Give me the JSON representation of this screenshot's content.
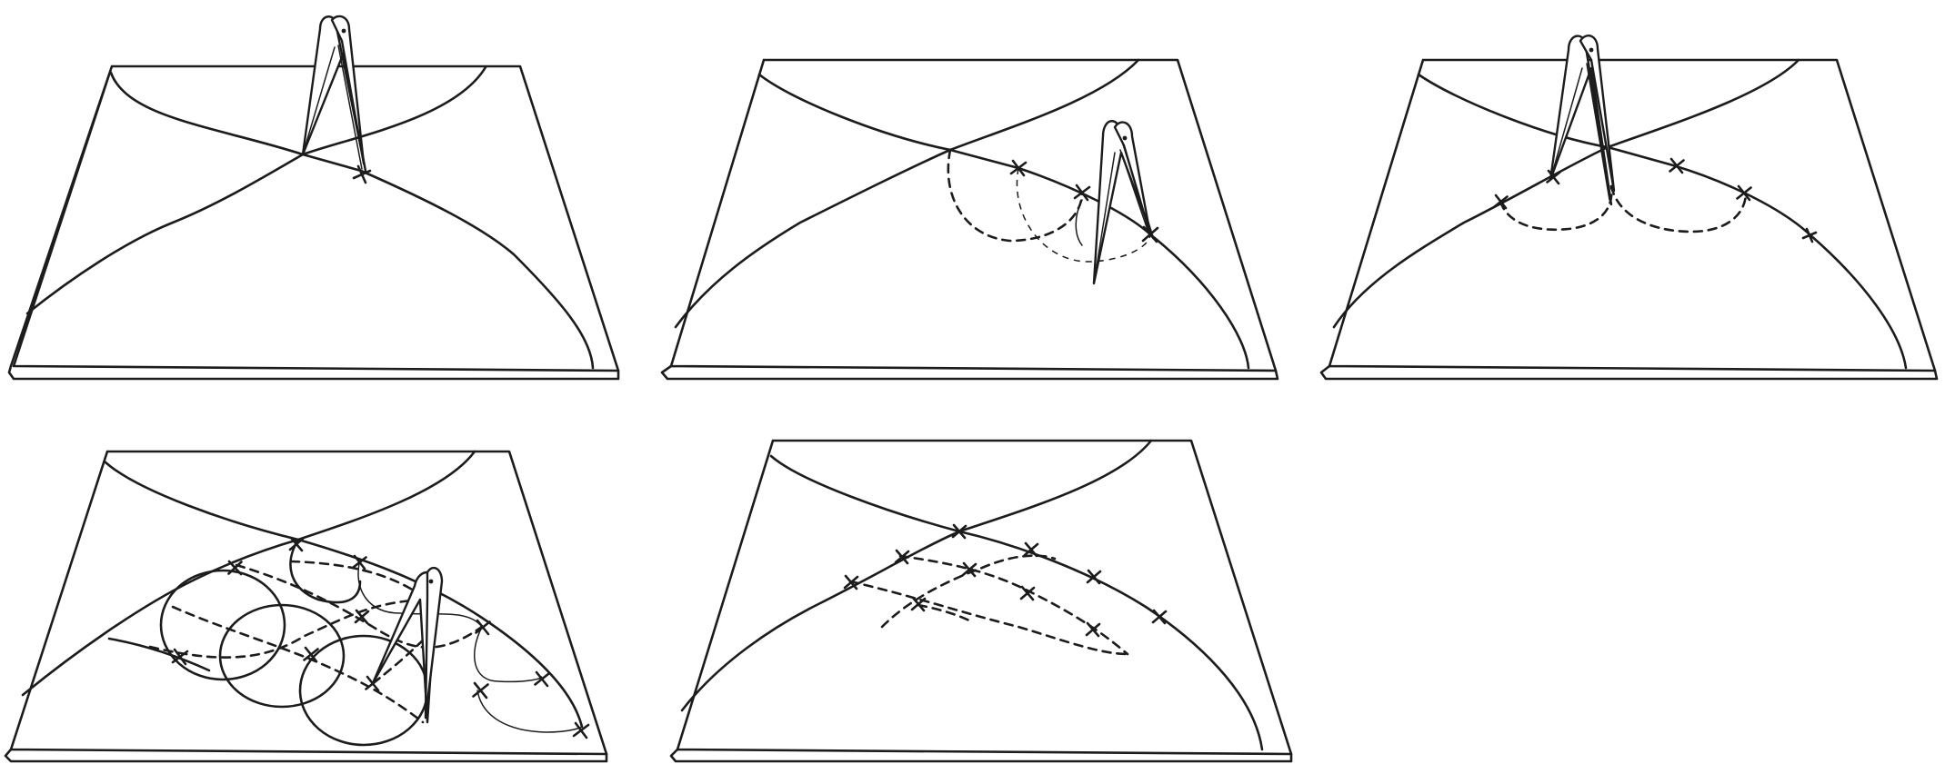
{
  "figure": {
    "panel_count": 5,
    "panels": [
      {
        "id": 1,
        "row": 1,
        "col": 1,
        "shows_compass": true,
        "dashed_arcs": false
      },
      {
        "id": 2,
        "row": 1,
        "col": 2,
        "shows_compass": true,
        "dashed_arcs": true
      },
      {
        "id": 3,
        "row": 1,
        "col": 3,
        "shows_compass": true,
        "dashed_arcs": true
      },
      {
        "id": 4,
        "row": 2,
        "col": 1,
        "shows_compass": true,
        "dashed_arcs": true
      },
      {
        "id": 5,
        "row": 2,
        "col": 2,
        "shows_compass": false,
        "dashed_arcs": true
      }
    ],
    "colors": {
      "line": "#1c1c1c",
      "background": "#ffffff"
    },
    "icons": [
      "compass-icon",
      "cross-mark-icon"
    ]
  }
}
